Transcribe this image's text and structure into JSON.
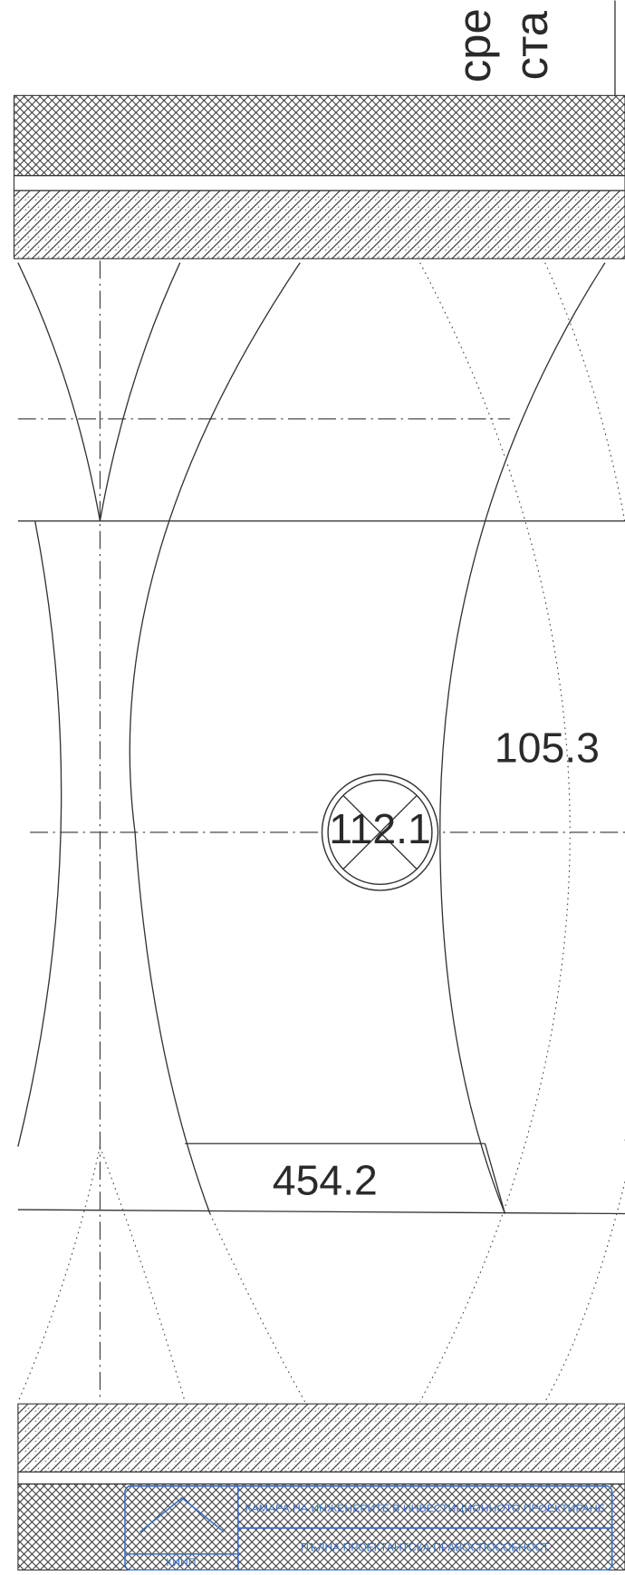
{
  "labels": {
    "vertical_1": "сре",
    "vertical_2": "ста"
  },
  "dimensions": [
    "105.3",
    "112.1",
    "454.2"
  ],
  "stamp": {
    "logo": "КИИП",
    "line_1": "КАМАРА НА ИНЖЕНЕРИТЕ В ИНВЕСТИЦИОННОТО ПРОЕКТИРАНЕ",
    "line_2": "ПЪЛНА ПРОЕКТАНТСКА ПРАВОСПОСОБНОСТ"
  }
}
